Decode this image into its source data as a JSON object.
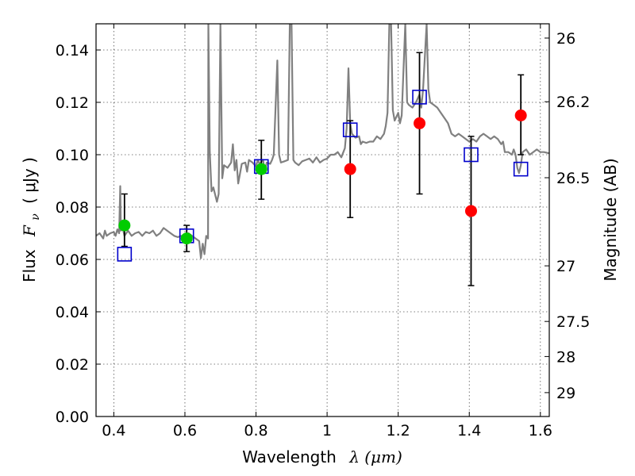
{
  "chart_data": {
    "type": "scatter",
    "title": "",
    "xlabel_text": "Wavelength",
    "xlabel_math": "λ (μm)",
    "ylabel_text": "Flux",
    "ylabel_math": "F",
    "ylabel_sub": "ν",
    "ylabel_units": "( μJy )",
    "y2label": "Magnitude (AB)",
    "xlim": [
      0.35,
      1.625
    ],
    "ylim": [
      0.0,
      0.15
    ],
    "x_ticks": [
      0.4,
      0.6,
      0.8,
      1.0,
      1.2,
      1.4,
      1.6
    ],
    "x_tick_labels": [
      "0.4",
      "0.6",
      "0.8",
      "1",
      "1.2",
      "1.4",
      "1.6"
    ],
    "y_ticks": [
      0.0,
      0.02,
      0.04,
      0.06,
      0.08,
      0.1,
      0.12,
      0.14
    ],
    "y_tick_labels": [
      "0.00",
      "0.02",
      "0.04",
      "0.06",
      "0.08",
      "0.10",
      "0.12",
      "0.14"
    ],
    "y2_ticks_mag": [
      26,
      26.2,
      26.5,
      27,
      27.5,
      28,
      29
    ],
    "y2_tick_labels": [
      "26",
      "26.2",
      "26.5",
      "27",
      "27.5",
      "28",
      "29"
    ],
    "grid": true,
    "colors": {
      "spectrum": "#808080",
      "green_points": "#00cc00",
      "red_points": "#ff0000",
      "model_squares": "#0000cc",
      "errorbars": "#000000"
    },
    "series": [
      {
        "marker": "circle-green",
        "points": [
          {
            "x": 0.43,
            "y": 0.073,
            "yerr_low": 0.065,
            "yerr_high": 0.085
          },
          {
            "x": 0.605,
            "y": 0.068,
            "yerr_low": 0.063,
            "yerr_high": 0.073
          },
          {
            "x": 0.815,
            "y": 0.0945,
            "yerr_low": 0.083,
            "yerr_high": 0.1055
          }
        ]
      },
      {
        "marker": "circle-red",
        "points": [
          {
            "x": 1.065,
            "y": 0.0945,
            "yerr_low": 0.076,
            "yerr_high": 0.113
          },
          {
            "x": 1.26,
            "y": 0.112,
            "yerr_low": 0.085,
            "yerr_high": 0.139
          },
          {
            "x": 1.405,
            "y": 0.0785,
            "yerr_low": 0.05,
            "yerr_high": 0.107
          },
          {
            "x": 1.545,
            "y": 0.115,
            "yerr_low": 0.1,
            "yerr_high": 0.1305
          }
        ]
      },
      {
        "marker": "square-blue-open",
        "points": [
          {
            "x": 0.43,
            "y": 0.062
          },
          {
            "x": 0.605,
            "y": 0.069
          },
          {
            "x": 0.815,
            "y": 0.0955
          },
          {
            "x": 1.065,
            "y": 0.1095
          },
          {
            "x": 1.26,
            "y": 0.122
          },
          {
            "x": 1.405,
            "y": 0.1
          },
          {
            "x": 1.545,
            "y": 0.0945
          }
        ]
      },
      {
        "marker": "line-gray",
        "points": [
          [
            0.35,
            0.069
          ],
          [
            0.36,
            0.07
          ],
          [
            0.37,
            0.068
          ],
          [
            0.375,
            0.071
          ],
          [
            0.38,
            0.069
          ],
          [
            0.39,
            0.07
          ],
          [
            0.4,
            0.0705
          ],
          [
            0.405,
            0.069
          ],
          [
            0.41,
            0.0715
          ],
          [
            0.415,
            0.07
          ],
          [
            0.418,
            0.088
          ],
          [
            0.42,
            0.071
          ],
          [
            0.425,
            0.072
          ],
          [
            0.43,
            0.069
          ],
          [
            0.44,
            0.071
          ],
          [
            0.45,
            0.069
          ],
          [
            0.46,
            0.07
          ],
          [
            0.47,
            0.0705
          ],
          [
            0.48,
            0.069
          ],
          [
            0.49,
            0.0705
          ],
          [
            0.5,
            0.07
          ],
          [
            0.51,
            0.071
          ],
          [
            0.52,
            0.069
          ],
          [
            0.53,
            0.07
          ],
          [
            0.54,
            0.072
          ],
          [
            0.55,
            0.071
          ],
          [
            0.56,
            0.07
          ],
          [
            0.57,
            0.069
          ],
          [
            0.58,
            0.0685
          ],
          [
            0.59,
            0.069
          ],
          [
            0.6,
            0.069
          ],
          [
            0.61,
            0.07
          ],
          [
            0.62,
            0.069
          ],
          [
            0.63,
            0.068
          ],
          [
            0.64,
            0.067
          ],
          [
            0.645,
            0.0605
          ],
          [
            0.65,
            0.066
          ],
          [
            0.655,
            0.062
          ],
          [
            0.66,
            0.069
          ],
          [
            0.665,
            0.068
          ],
          [
            0.666,
            0.15
          ],
          [
            0.67,
            0.101
          ],
          [
            0.675,
            0.086
          ],
          [
            0.68,
            0.0875
          ],
          [
            0.69,
            0.082
          ],
          [
            0.695,
            0.085
          ],
          [
            0.7,
            0.15
          ],
          [
            0.705,
            0.091
          ],
          [
            0.71,
            0.096
          ],
          [
            0.72,
            0.095
          ],
          [
            0.73,
            0.097
          ],
          [
            0.735,
            0.104
          ],
          [
            0.74,
            0.094
          ],
          [
            0.745,
            0.098
          ],
          [
            0.75,
            0.089
          ],
          [
            0.76,
            0.0965
          ],
          [
            0.77,
            0.097
          ],
          [
            0.775,
            0.0935
          ],
          [
            0.78,
            0.098
          ],
          [
            0.79,
            0.097
          ],
          [
            0.8,
            0.0955
          ],
          [
            0.805,
            0.098
          ],
          [
            0.81,
            0.0965
          ],
          [
            0.82,
            0.098
          ],
          [
            0.825,
            0.093
          ],
          [
            0.83,
            0.097
          ],
          [
            0.84,
            0.0965
          ],
          [
            0.845,
            0.098
          ],
          [
            0.85,
            0.1
          ],
          [
            0.86,
            0.136
          ],
          [
            0.865,
            0.1
          ],
          [
            0.87,
            0.097
          ],
          [
            0.88,
            0.0975
          ],
          [
            0.89,
            0.098
          ],
          [
            0.895,
            0.15
          ],
          [
            0.9,
            0.15
          ],
          [
            0.905,
            0.098
          ],
          [
            0.91,
            0.097
          ],
          [
            0.92,
            0.096
          ],
          [
            0.93,
            0.0975
          ],
          [
            0.94,
            0.098
          ],
          [
            0.95,
            0.0985
          ],
          [
            0.96,
            0.097
          ],
          [
            0.97,
            0.099
          ],
          [
            0.98,
            0.097
          ],
          [
            0.99,
            0.098
          ],
          [
            1.0,
            0.0985
          ],
          [
            1.01,
            0.1
          ],
          [
            1.02,
            0.1
          ],
          [
            1.03,
            0.101
          ],
          [
            1.04,
            0.099
          ],
          [
            1.05,
            0.1025
          ],
          [
            1.055,
            0.11
          ],
          [
            1.06,
            0.133
          ],
          [
            1.065,
            0.112
          ],
          [
            1.07,
            0.108
          ],
          [
            1.08,
            0.1065
          ],
          [
            1.09,
            0.107
          ],
          [
            1.095,
            0.104
          ],
          [
            1.1,
            0.105
          ],
          [
            1.11,
            0.1045
          ],
          [
            1.12,
            0.105
          ],
          [
            1.13,
            0.105
          ],
          [
            1.14,
            0.107
          ],
          [
            1.15,
            0.106
          ],
          [
            1.16,
            0.108
          ],
          [
            1.165,
            0.111
          ],
          [
            1.17,
            0.116
          ],
          [
            1.175,
            0.15
          ],
          [
            1.18,
            0.15
          ],
          [
            1.185,
            0.117
          ],
          [
            1.19,
            0.113
          ],
          [
            1.2,
            0.116
          ],
          [
            1.205,
            0.112
          ],
          [
            1.21,
            0.115
          ],
          [
            1.22,
            0.15
          ],
          [
            1.225,
            0.12
          ],
          [
            1.23,
            0.119
          ],
          [
            1.24,
            0.118
          ],
          [
            1.25,
            0.12
          ],
          [
            1.26,
            0.123
          ],
          [
            1.265,
            0.118
          ],
          [
            1.27,
            0.125
          ],
          [
            1.28,
            0.15
          ],
          [
            1.285,
            0.125
          ],
          [
            1.29,
            0.12
          ],
          [
            1.3,
            0.119
          ],
          [
            1.31,
            0.118
          ],
          [
            1.32,
            0.116
          ],
          [
            1.33,
            0.114
          ],
          [
            1.34,
            0.112
          ],
          [
            1.35,
            0.108
          ],
          [
            1.36,
            0.107
          ],
          [
            1.37,
            0.108
          ],
          [
            1.38,
            0.107
          ],
          [
            1.39,
            0.106
          ],
          [
            1.4,
            0.105
          ],
          [
            1.41,
            0.106
          ],
          [
            1.42,
            0.105
          ],
          [
            1.43,
            0.107
          ],
          [
            1.44,
            0.108
          ],
          [
            1.45,
            0.107
          ],
          [
            1.46,
            0.106
          ],
          [
            1.47,
            0.107
          ],
          [
            1.48,
            0.106
          ],
          [
            1.49,
            0.104
          ],
          [
            1.495,
            0.105
          ],
          [
            1.5,
            0.101
          ],
          [
            1.51,
            0.101
          ],
          [
            1.52,
            0.1
          ],
          [
            1.525,
            0.102
          ],
          [
            1.53,
            0.1
          ],
          [
            1.535,
            0.095
          ],
          [
            1.54,
            0.093
          ],
          [
            1.545,
            0.096
          ],
          [
            1.55,
            0.101
          ],
          [
            1.56,
            0.102
          ],
          [
            1.57,
            0.1
          ],
          [
            1.58,
            0.101
          ],
          [
            1.59,
            0.102
          ],
          [
            1.6,
            0.101
          ],
          [
            1.61,
            0.101
          ],
          [
            1.625,
            0.1005
          ]
        ]
      }
    ]
  }
}
